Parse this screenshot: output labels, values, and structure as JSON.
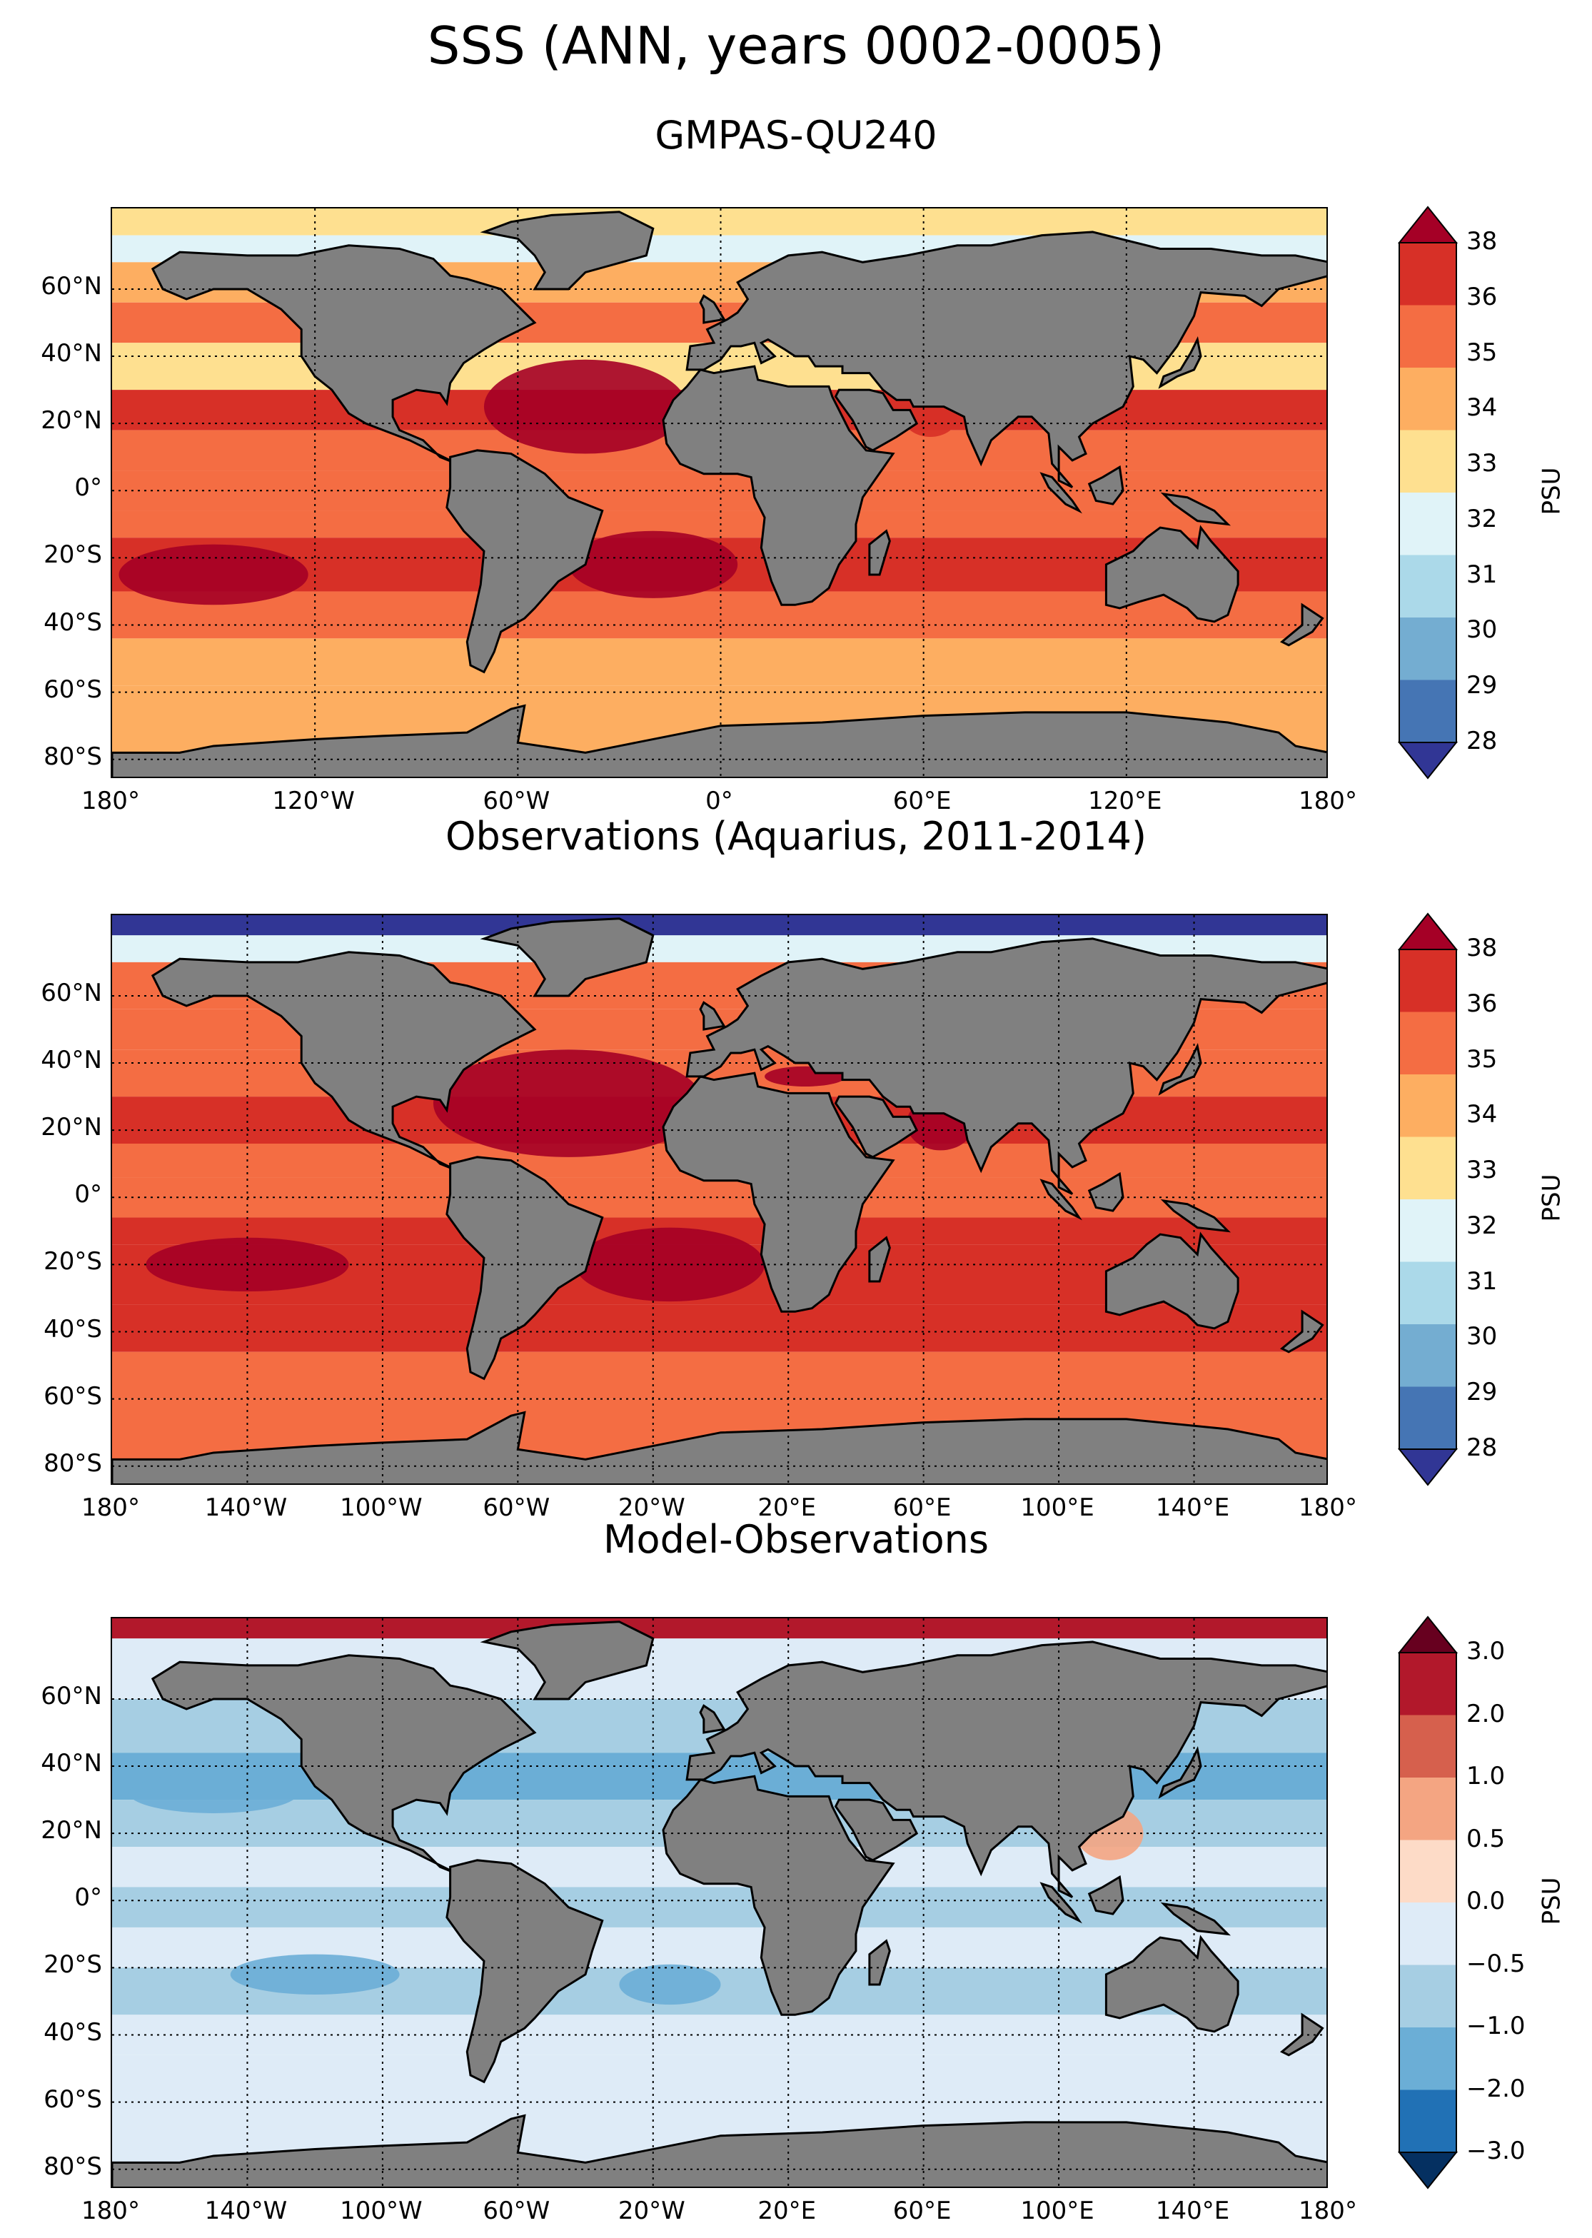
{
  "title": "SSS (ANN, years 0002-0005)",
  "subtitle": "GMPAS-QU240",
  "land_color": "#808080",
  "panels": [
    {
      "id": "model",
      "title": "",
      "lat_labels": [
        "60°N",
        "40°N",
        "20°N",
        "0°",
        "20°S",
        "40°S",
        "60°S",
        "80°S"
      ],
      "lon_labels": [
        "180°",
        "120°W",
        "60°W",
        "0°",
        "60°E",
        "120°E",
        "180°"
      ],
      "colorbar": {
        "label": "PSU",
        "ticks": [
          "38",
          "36",
          "35",
          "34",
          "33",
          "32",
          "31",
          "30",
          "29",
          "28"
        ],
        "colors": [
          "#a50026",
          "#d73027",
          "#f46d43",
          "#fdae61",
          "#fee090",
          "#e0f3f8",
          "#abd9e9",
          "#74add1",
          "#4575b4",
          "#313695"
        ]
      }
    },
    {
      "id": "obs",
      "title": "Observations (Aquarius, 2011-2014)",
      "lat_labels": [
        "60°N",
        "40°N",
        "20°N",
        "0°",
        "20°S",
        "40°S",
        "60°S",
        "80°S"
      ],
      "lon_labels": [
        "180°",
        "140°W",
        "100°W",
        "60°W",
        "20°W",
        "20°E",
        "60°E",
        "100°E",
        "140°E",
        "180°"
      ],
      "colorbar": {
        "label": "PSU",
        "ticks": [
          "38",
          "36",
          "35",
          "34",
          "33",
          "32",
          "31",
          "30",
          "29",
          "28"
        ],
        "colors": [
          "#a50026",
          "#d73027",
          "#f46d43",
          "#fdae61",
          "#fee090",
          "#e0f3f8",
          "#abd9e9",
          "#74add1",
          "#4575b4",
          "#313695"
        ]
      }
    },
    {
      "id": "bias",
      "title": "Model-Observations",
      "lat_labels": [
        "60°N",
        "40°N",
        "20°N",
        "0°",
        "20°S",
        "40°S",
        "60°S",
        "80°S"
      ],
      "lon_labels": [
        "180°",
        "140°W",
        "100°W",
        "60°W",
        "20°W",
        "20°E",
        "60°E",
        "100°E",
        "140°E",
        "180°"
      ],
      "colorbar": {
        "label": "PSU",
        "ticks": [
          "3.0",
          "2.0",
          "1.0",
          "0.5",
          "0.0",
          "−0.5",
          "−1.0",
          "−2.0",
          "−3.0"
        ],
        "colors": [
          "#67001f",
          "#b2182b",
          "#d6604d",
          "#f4a582",
          "#fddbc7",
          "#deebf7",
          "#a6cee3",
          "#6baed6",
          "#2171b5",
          "#053061"
        ]
      }
    }
  ]
}
